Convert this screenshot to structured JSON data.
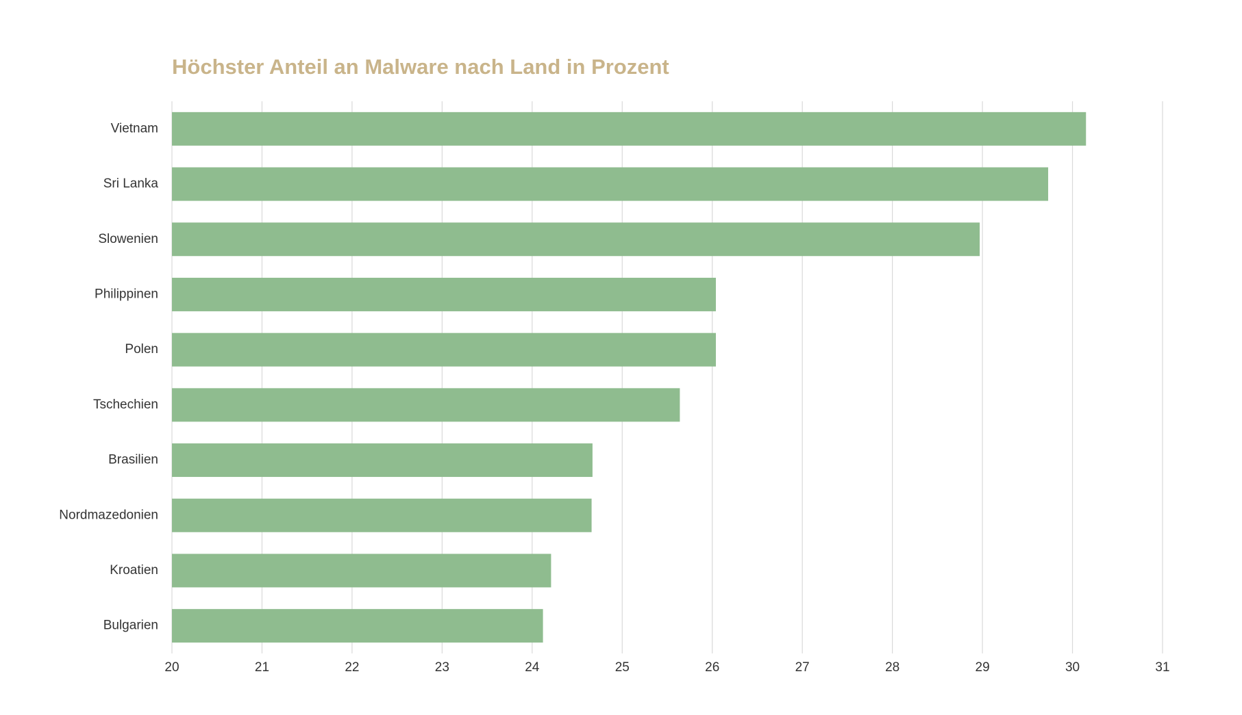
{
  "chart_data": {
    "type": "hbar",
    "title": "Höchster Anteil an Malware nach Land in Prozent",
    "categories": [
      "Vietnam",
      "Sri Lanka",
      "Slowenien",
      "Philippinen",
      "Polen",
      "Tschechien",
      "Brasilien",
      "Nordmazedonien",
      "Kroatien",
      "Bulgarien"
    ],
    "values": [
      30.15,
      29.73,
      28.97,
      26.04,
      26.04,
      25.64,
      24.67,
      24.66,
      24.21,
      24.12
    ],
    "color": "#8fbc8f",
    "xlim": [
      20,
      31
    ],
    "xticks": [
      20,
      21,
      22,
      23,
      24,
      25,
      26,
      27,
      28,
      29,
      30,
      31
    ],
    "grid": true
  }
}
